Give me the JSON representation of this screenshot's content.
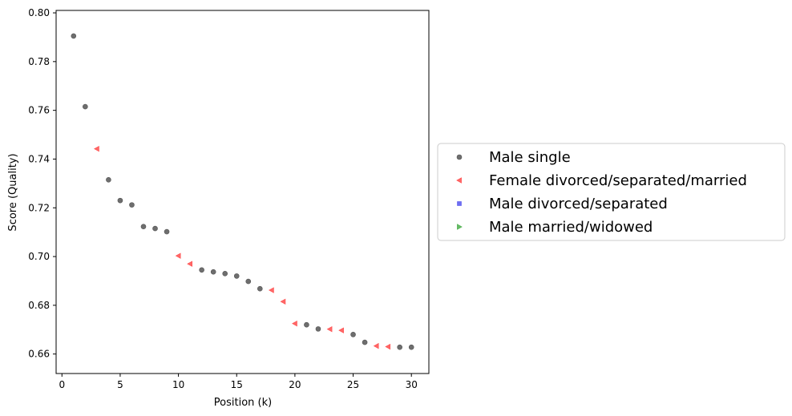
{
  "chart_data": {
    "type": "scatter",
    "title": "",
    "xlabel": "Position (k)",
    "ylabel": "Score (Quality)",
    "xlim": [
      -0.5,
      31.5
    ],
    "ylim": [
      0.652,
      0.801
    ],
    "x_ticks": [
      0,
      5,
      10,
      15,
      20,
      25,
      30
    ],
    "y_ticks": [
      0.66,
      0.68,
      0.7,
      0.72,
      0.74,
      0.76,
      0.78,
      0.8
    ],
    "grid": false,
    "legend_position": "outside-right",
    "series": [
      {
        "name": "Male single",
        "marker": "circle",
        "color": "#555555",
        "points": [
          [
            1,
            0.7905
          ],
          [
            2,
            0.7615
          ],
          [
            4,
            0.7315
          ],
          [
            5,
            0.723
          ],
          [
            6,
            0.7212
          ],
          [
            7,
            0.7123
          ],
          [
            8,
            0.7115
          ],
          [
            9,
            0.7102
          ],
          [
            12,
            0.6945
          ],
          [
            13,
            0.6937
          ],
          [
            14,
            0.693
          ],
          [
            15,
            0.692
          ],
          [
            16,
            0.6898
          ],
          [
            17,
            0.6868
          ],
          [
            21,
            0.672
          ],
          [
            22,
            0.6703
          ],
          [
            25,
            0.668
          ],
          [
            26,
            0.6648
          ],
          [
            29,
            0.6628
          ],
          [
            30,
            0.6628
          ]
        ]
      },
      {
        "name": "Female divorced/separated/married",
        "marker": "triangle-left",
        "color": "#ff4d4d",
        "points": [
          [
            3,
            0.7442
          ],
          [
            10,
            0.7003
          ],
          [
            11,
            0.697
          ],
          [
            18,
            0.6862
          ],
          [
            19,
            0.6815
          ],
          [
            20,
            0.6725
          ],
          [
            23,
            0.6702
          ],
          [
            24,
            0.6697
          ],
          [
            27,
            0.6633
          ],
          [
            28,
            0.663
          ]
        ]
      },
      {
        "name": "Male divorced/separated",
        "marker": "square",
        "color": "#5555ee",
        "points": []
      },
      {
        "name": "Male married/widowed",
        "marker": "triangle-right",
        "color": "#4caf4c",
        "points": []
      }
    ]
  }
}
